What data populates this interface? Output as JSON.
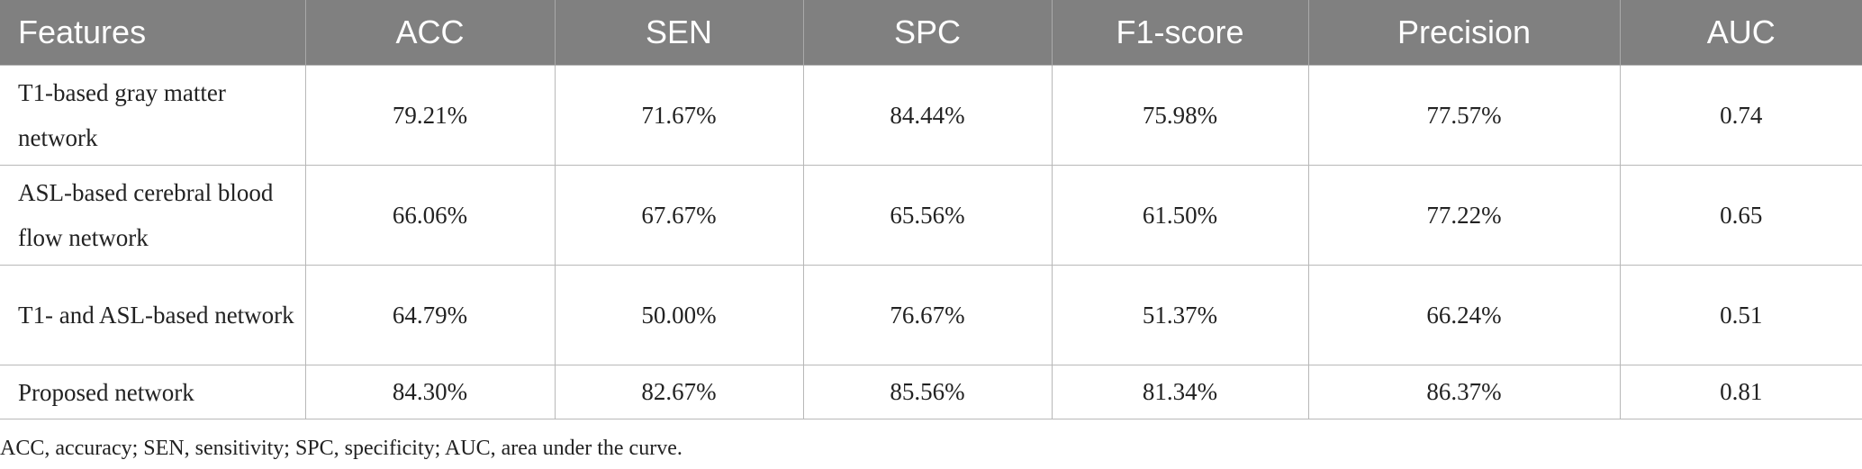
{
  "table": {
    "headers": [
      "Features",
      "ACC",
      "SEN",
      "SPC",
      "F1-score",
      "Precision",
      "AUC"
    ],
    "rows": [
      [
        "T1-based gray matter network",
        "79.21%",
        "71.67%",
        "84.44%",
        "75.98%",
        "77.57%",
        "0.74"
      ],
      [
        "ASL-based cerebral blood flow network",
        "66.06%",
        "67.67%",
        "65.56%",
        "61.50%",
        "77.22%",
        "0.65"
      ],
      [
        "T1- and ASL-based network",
        "64.79%",
        "50.00%",
        "76.67%",
        "51.37%",
        "66.24%",
        "0.51"
      ],
      [
        "Proposed network",
        "84.30%",
        "82.67%",
        "85.56%",
        "81.34%",
        "86.37%",
        "0.81"
      ]
    ]
  },
  "footnote": "ACC, accuracy; SEN, sensitivity; SPC, specificity; AUC, area under the curve.",
  "colors": {
    "header_background": "#808080",
    "header_text": "#ffffff"
  }
}
